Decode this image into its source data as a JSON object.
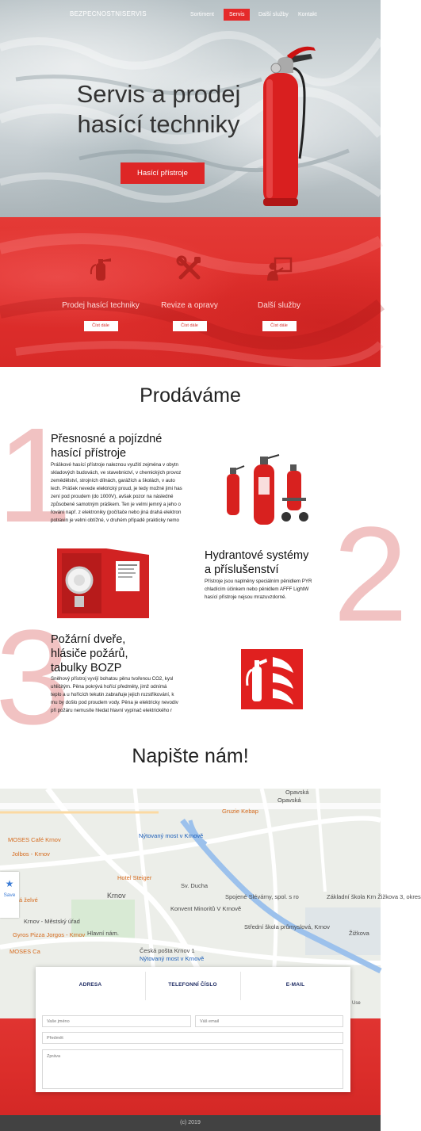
{
  "nav": {
    "brand": "BEZPECNOSTNISERVIS",
    "items": [
      {
        "label": "Sortiment",
        "active": false
      },
      {
        "label": "Servis",
        "active": true
      },
      {
        "label": "Další služby",
        "active": false
      },
      {
        "label": "Kontakt",
        "active": false
      }
    ]
  },
  "hero": {
    "title_line1": "Servis a prodej",
    "title_line2": "hasící techniky",
    "button": "Hasící přístroje"
  },
  "services": [
    {
      "label": "Prodej hasící techniky",
      "button": "Číst dále",
      "icon": "extinguisher-icon"
    },
    {
      "label": "Revize a opravy",
      "button": "Číst dále",
      "icon": "tools-icon"
    },
    {
      "label": "Další služby",
      "button": "Číst dále",
      "icon": "teacher-icon"
    }
  ],
  "products": {
    "title": "Prodáváme",
    "items": [
      {
        "number": "1",
        "title_line1": "Přesnosné a pojízdné",
        "title_line2": "hasící přístroje",
        "lines": [
          "Práškové hasící přístroje naleznou využití zejména v obytn",
          "skladových budovách, ve stavebnictví, v chemických provoz",
          "zemědělství, strojních dílnách, garážích a školách, v auto",
          "lech. Prášek nevede elektrický proud, je tedy možné jimi has",
          "zení pod proudem (do 1000V), avšak pozor na následné",
          "způsobené samotným práškem. Ten je velmi jemný a jeho o",
          "řování např. z elektroniky (počítače nebo jiná drahá elektron",
          "potravin je velmi obtížné, v druhém případě prakticky nemo"
        ]
      },
      {
        "number": "2",
        "title_line1": "Hydrantové systémy",
        "title_line2": "a příslušenství",
        "lines": [
          "Přístroje jsou naplněny speciálním pěnidlem PYR",
          "chladícím účinkem nebo pěnidlem AFFF LightW",
          "hasící přístroje nejsou mrazuvzdorné."
        ]
      },
      {
        "number": "3",
        "title_line1": "Požární dveře,",
        "title_line2": "hlásiče požárů,",
        "title_line3": "tabulky BOZP",
        "lines": [
          "Sněhový přístroj vyvíjí bohatou pěnu tvořenou CO2, kysl",
          "uhličitým. Pěna pokrývá hořící předměty, jimž odnímá",
          "teplo a u hořících tekutin zabraňuje jejich rozstřikování, k",
          "mu by došlo pod proudem vody. Pěna je elektricky nevodiv",
          "při požáru nemusíte hledat hlavní vypínač elektrického r"
        ]
      }
    ]
  },
  "contact": {
    "title": "Napište nám!",
    "info": [
      {
        "label": "ADRESA"
      },
      {
        "label": "TELEFONNÍ ČÍSLO"
      },
      {
        "label": "E-MAIL"
      }
    ],
    "fields": {
      "name_placeholder": "Vaše jméno",
      "email_placeholder": "Váš email",
      "subject_placeholder": "Předmět",
      "message_placeholder": "Zpráva"
    }
  },
  "map": {
    "save_label": "Save",
    "use_label": "Use",
    "labels": [
      {
        "text": "Opavská",
        "color": "gray"
      },
      {
        "text": "Nýtovaný most v Krnově",
        "color": "blue"
      },
      {
        "text": "MOSES Café Krnov",
        "color": "orange"
      },
      {
        "text": "Jolbos - Krnov",
        "color": "orange"
      },
      {
        "text": "Hotel Steiger",
        "color": "orange"
      },
      {
        "text": "Krnov",
        "color": "gray"
      },
      {
        "text": "á želvé",
        "color": "orange"
      },
      {
        "text": "Krnov - Městský úřad",
        "color": "gray"
      },
      {
        "text": "Gyros Pizza Jorgos - Krnov",
        "color": "orange"
      },
      {
        "text": "Konvent Minoritů V Krnově",
        "color": "gray"
      },
      {
        "text": "Spojené Slévárny, spol. s ro",
        "color": "gray"
      },
      {
        "text": "Základní škola Krn Žižkova 3, okres",
        "color": "gray"
      },
      {
        "text": "Střední škola průmyslová, Krnov",
        "color": "gray"
      },
      {
        "text": "Česká pošta Krnov 1",
        "color": "gray"
      },
      {
        "text": "Nýtovaný most v Krnově",
        "color": "blue"
      },
      {
        "text": "MOSES Ca",
        "color": "orange"
      },
      {
        "text": "Hlavní nám.",
        "color": "gray"
      },
      {
        "text": "Sv. Ducha",
        "color": "gray"
      },
      {
        "text": "Žižkova",
        "color": "gray"
      },
      {
        "text": "Gruzie Kebap",
        "color": "orange"
      },
      {
        "text": "Opavská",
        "color": "gray"
      }
    ]
  },
  "footer": {
    "copyright": "(c) 2019"
  },
  "colors": {
    "accent": "#de2626",
    "band": "#df2f2c",
    "navy": "#1e2b63",
    "footer": "#424242"
  }
}
